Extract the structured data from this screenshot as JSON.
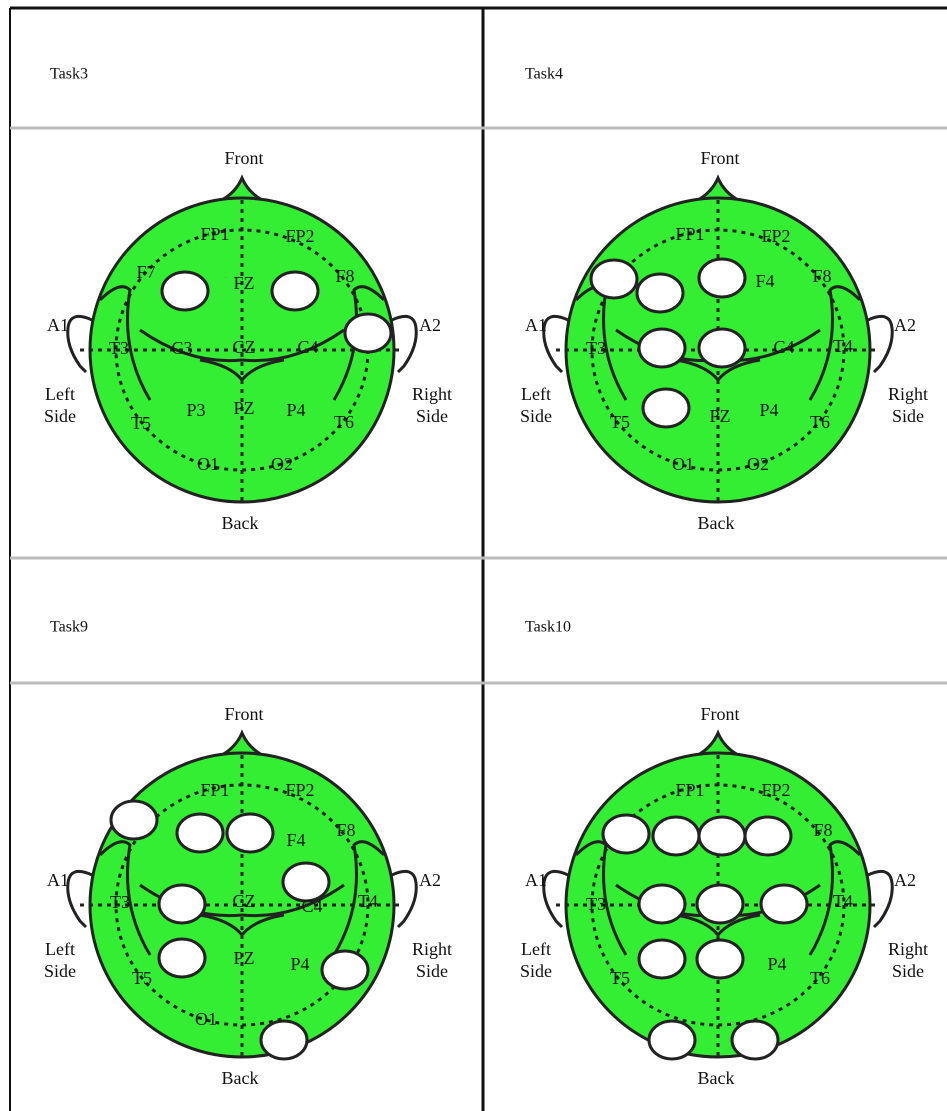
{
  "panels": [
    {
      "title": "Task3",
      "labels": [
        "Front",
        "FP1",
        "FP2",
        "F7",
        "FZ",
        "F8",
        "A1",
        "A2",
        "T3",
        "C3",
        "CZ",
        "C4",
        "Left",
        "Side",
        "Right",
        "Side",
        "T5",
        "P3",
        "PZ",
        "P4",
        "T6",
        "O1",
        "O2",
        "Back"
      ]
    },
    {
      "title": "Task4",
      "labels": [
        "Front",
        "FP1",
        "FP2",
        "F4",
        "F8",
        "A1",
        "A2",
        "T3",
        "C4",
        "T4",
        "Left",
        "Side",
        "Right",
        "Side",
        "T5",
        "PZ",
        "P4",
        "T6",
        "O1",
        "O2",
        "Back"
      ]
    },
    {
      "title": "Task9",
      "labels": [
        "Front",
        "FP1",
        "FP2",
        "F4",
        "F8",
        "A1",
        "A2",
        "T3",
        "CZ",
        "C4",
        "T4",
        "Left",
        "Side",
        "Right",
        "Side",
        "PZ",
        "P4",
        "T5",
        "O1",
        "Back"
      ]
    },
    {
      "title": "Task10",
      "labels": [
        "Front",
        "FP1",
        "FP2",
        "F8",
        "A1",
        "A2",
        "T3",
        "T4",
        "Left",
        "Side",
        "Right",
        "Side",
        "P4",
        "T5",
        "T6",
        "Back"
      ]
    }
  ]
}
